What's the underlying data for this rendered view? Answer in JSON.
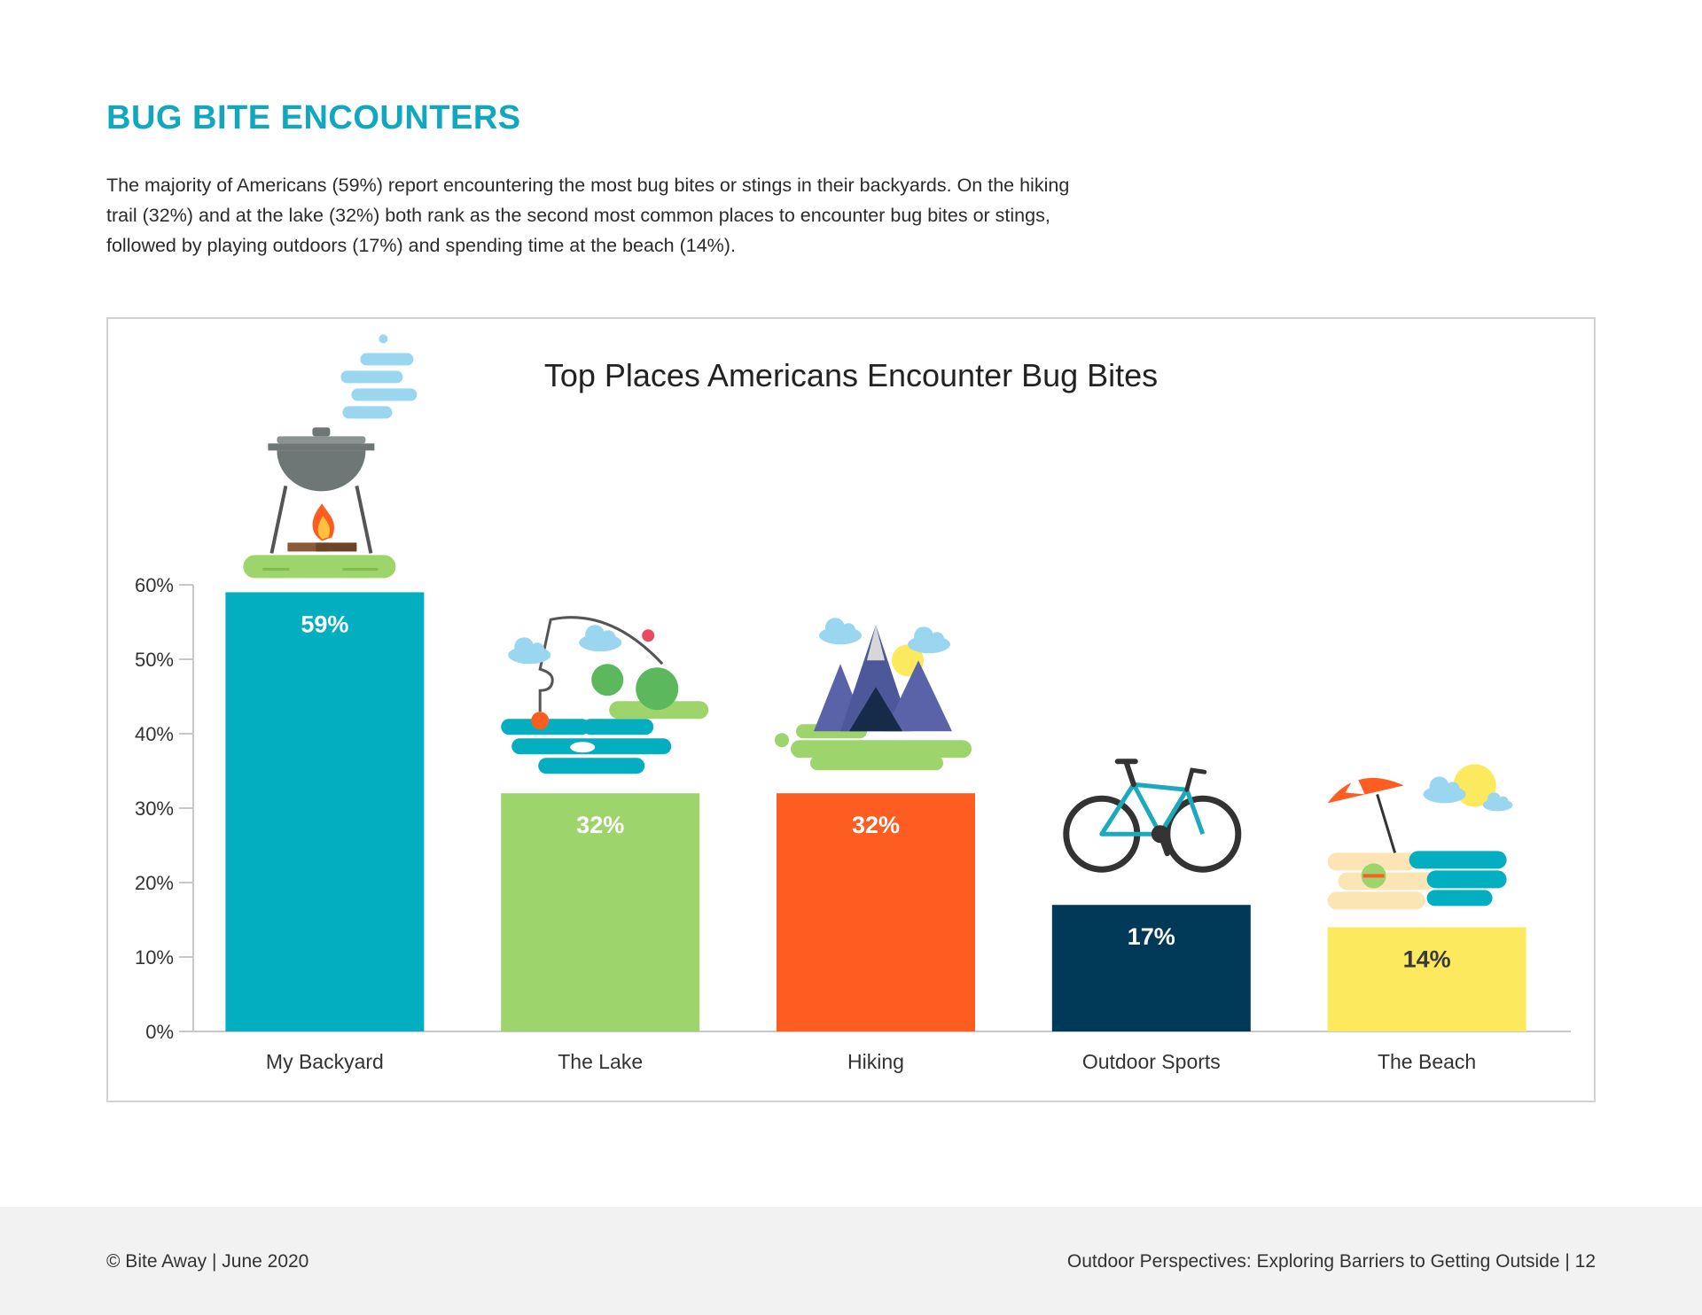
{
  "page": {
    "heading": "BUG BITE ENCOUNTERS",
    "intro": "The majority of Americans (59%) report encountering the most bug bites or stings in their backyards. On the hiking trail  (32%) and at the lake (32%) both rank as the second most common places to encounter bug bites or stings, followed by playing outdoors (17%) and spending time at the beach (14%).",
    "accent_color": "#10a7bf"
  },
  "footer": {
    "left": "© Bite Away | June 2020",
    "right": "Outdoor Perspectives: Exploring Barriers to Getting Outside |  12"
  },
  "chart_data": {
    "type": "bar",
    "title": "Top Places Americans Encounter Bug Bites",
    "xlabel": "",
    "ylabel": "",
    "ylim": [
      0,
      60
    ],
    "grid": false,
    "legend": "none",
    "yticks": [
      "0%",
      "10%",
      "20%",
      "30%",
      "40%",
      "50%",
      "60%"
    ],
    "categories": [
      "My Backyard",
      "The Lake",
      "Hiking",
      "Outdoor Sports",
      "The Beach"
    ],
    "values": [
      59,
      32,
      32,
      17,
      14
    ],
    "value_labels": [
      "59%",
      "32%",
      "32%",
      "17%",
      "14%"
    ],
    "colors": [
      "#03aec0",
      "#9dd56c",
      "#fe5d22",
      "#013a58",
      "#fde95d"
    ],
    "label_colors": [
      "#ffffff",
      "#ffffff",
      "#ffffff",
      "#ffffff",
      "#3a3a3a"
    ],
    "icons": [
      "grill-icon",
      "lake-fishing-icon",
      "mountains-icon",
      "bicycle-icon",
      "beach-icon"
    ]
  }
}
